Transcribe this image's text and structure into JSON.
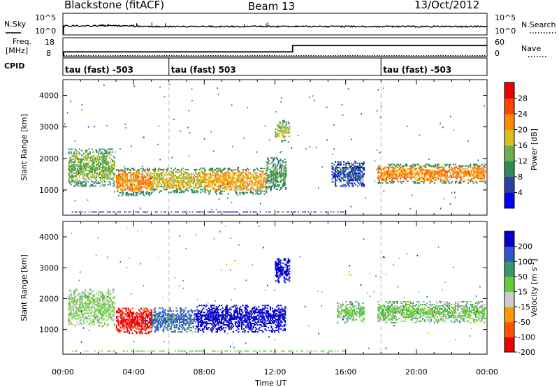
{
  "header": {
    "radar": "Blackstone (fitACF)",
    "beam": "Beam 13",
    "date": "13/Oct/2012"
  },
  "noise_panel": {
    "left_label": "N.Sky",
    "left_ticks": [
      "10^5",
      "10^0"
    ],
    "right_label": "N.Search",
    "right_ticks": [
      "10^5",
      "10^0"
    ],
    "level": 0.3
  },
  "freq_panel": {
    "left_label_line1": "Freq.",
    "left_label_line2": "[MHz]",
    "left_ticks": [
      "18",
      "8"
    ],
    "right_label": "Nave",
    "right_ticks": [
      "60",
      "0"
    ],
    "freq_segments": [
      {
        "start": 0.0,
        "end": 13.0,
        "value": 10.0
      },
      {
        "start": 13.0,
        "end": 24.0,
        "value": 14.0
      }
    ]
  },
  "cpid_panel": {
    "label": "CPID",
    "entries": [
      {
        "start": 0.0,
        "text": "tau (fast) -503"
      },
      {
        "start": 6.0,
        "text": "tau (fast) 503"
      },
      {
        "start": 18.0,
        "text": "tau (fast) -503"
      }
    ]
  },
  "chart_data": [
    {
      "type": "heatmap",
      "quantity": "power",
      "xlabel": "Time UT",
      "ylabel": "Slant Range [km]",
      "xlim": [
        0,
        24
      ],
      "ylim": [
        200,
        4500
      ],
      "yticks": [
        1000,
        2000,
        3000,
        4000
      ],
      "colorbar_label": "Power [dB]",
      "colorbar_ticks": [
        "28",
        "24",
        "20",
        "16",
        "12",
        "8",
        "4"
      ],
      "colorbar_colors": [
        "#0000ff",
        "#2a3fa8",
        "#2e8b57",
        "#6ab04c",
        "#d8c020",
        "#ff8800",
        "#ff4400",
        "#ee0000"
      ],
      "regions": [
        {
          "t_start": 0.3,
          "t_end": 2.9,
          "range_low": 1100,
          "range_high": 2300,
          "value": 14
        },
        {
          "t_start": 3.0,
          "t_end": 5.0,
          "range_low": 800,
          "range_high": 1700,
          "value": 22
        },
        {
          "t_start": 5.0,
          "t_end": 8.0,
          "range_low": 900,
          "range_high": 1700,
          "value": 18
        },
        {
          "t_start": 8.0,
          "t_end": 11.5,
          "range_low": 850,
          "range_high": 1700,
          "value": 20
        },
        {
          "t_start": 11.5,
          "t_end": 12.6,
          "range_low": 1000,
          "range_high": 2000,
          "value": 12
        },
        {
          "t_start": 12.0,
          "t_end": 12.8,
          "range_low": 2500,
          "range_high": 3200,
          "value": 16
        },
        {
          "t_start": 15.2,
          "t_end": 17.0,
          "range_low": 1100,
          "range_high": 1900,
          "value": 6
        },
        {
          "t_start": 17.8,
          "t_end": 23.9,
          "range_low": 1200,
          "range_high": 1800,
          "value": 22
        }
      ]
    },
    {
      "type": "heatmap",
      "quantity": "velocity",
      "xlabel": "Time UT",
      "ylabel": "Slant Range [km]",
      "xlim": [
        0,
        24
      ],
      "ylim": [
        200,
        4500
      ],
      "yticks": [
        1000,
        2000,
        3000,
        4000
      ],
      "xticks": [
        "00:00",
        "04:00",
        "08:00",
        "12:00",
        "16:00",
        "20:00",
        "00:00"
      ],
      "colorbar_label_main": "Velocity [m s",
      "colorbar_label_sup": "-1",
      "colorbar_label_end": "]",
      "colorbar_ticks": [
        "200",
        "100",
        "50",
        "15",
        "-15",
        "-50",
        "-100",
        "-200"
      ],
      "colorbar_colors": [
        "#ee0000",
        "#ff5500",
        "#ff9900",
        "#cccccc",
        "#66cc33",
        "#339966",
        "#3355cc",
        "#0000cc"
      ],
      "regions": [
        {
          "t_start": 0.3,
          "t_end": 2.9,
          "range_low": 1100,
          "range_high": 2300,
          "value": -10
        },
        {
          "t_start": 3.0,
          "t_end": 5.0,
          "range_low": 850,
          "range_high": 1700,
          "value": -220
        },
        {
          "t_start": 5.0,
          "t_end": 7.5,
          "range_low": 900,
          "range_high": 1700,
          "value": 60
        },
        {
          "t_start": 7.5,
          "t_end": 12.6,
          "range_low": 900,
          "range_high": 1800,
          "value": 180
        },
        {
          "t_start": 12.0,
          "t_end": 12.8,
          "range_low": 2500,
          "range_high": 3300,
          "value": 200
        },
        {
          "t_start": 15.5,
          "t_end": 17.0,
          "range_low": 1200,
          "range_high": 1900,
          "value": 0
        },
        {
          "t_start": 17.8,
          "t_end": 23.9,
          "range_low": 1200,
          "range_high": 1900,
          "value": 0
        }
      ]
    }
  ]
}
